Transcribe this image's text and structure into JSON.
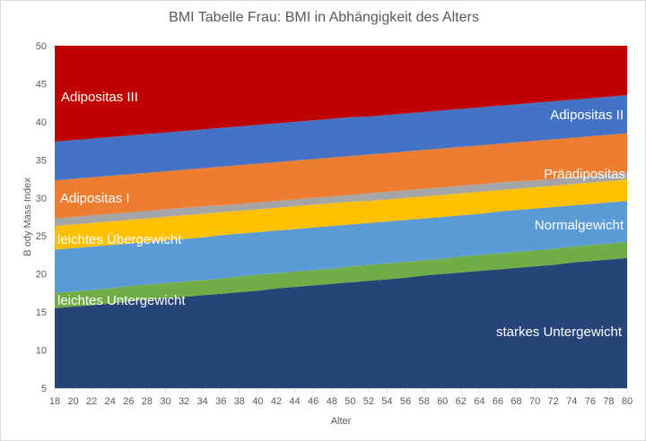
{
  "chart_data": {
    "type": "area",
    "stacked": true,
    "title": "BMI Tabelle Frau: BMI in Abhängigkeit des Alters",
    "xlabel": "Alter",
    "ylabel": "B ody Mass Index",
    "ylim": [
      5,
      50
    ],
    "yticks": [
      5,
      10,
      15,
      20,
      25,
      30,
      35,
      40,
      45,
      50
    ],
    "x": [
      18,
      20,
      22,
      24,
      26,
      28,
      30,
      32,
      34,
      36,
      38,
      40,
      42,
      44,
      46,
      48,
      50,
      52,
      54,
      56,
      58,
      60,
      62,
      64,
      66,
      68,
      70,
      72,
      74,
      76,
      78,
      80
    ],
    "grid": false,
    "series_note": "values are the upper BMI boundary of each band",
    "series": [
      {
        "name": "starkes Untergewicht",
        "color": "#264478",
        "values": [
          15.5,
          15.7,
          15.9,
          16.1,
          16.4,
          16.6,
          16.8,
          17.0,
          17.2,
          17.4,
          17.6,
          17.8,
          18.1,
          18.3,
          18.5,
          18.7,
          18.9,
          19.1,
          19.3,
          19.5,
          19.8,
          20.0,
          20.2,
          20.4,
          20.6,
          20.8,
          21.0,
          21.2,
          21.5,
          21.7,
          21.9,
          22.1
        ]
      },
      {
        "name": "leichtes Untergewicht",
        "color": "#70AD47",
        "values": [
          17.5,
          17.7,
          17.9,
          18.1,
          18.4,
          18.6,
          18.8,
          19.0,
          19.2,
          19.4,
          19.7,
          19.9,
          20.1,
          20.3,
          20.5,
          20.7,
          21.0,
          21.2,
          21.4,
          21.6,
          21.8,
          22.0,
          22.3,
          22.5,
          22.7,
          22.9,
          23.1,
          23.3,
          23.6,
          23.8,
          24.0,
          24.2
        ]
      },
      {
        "name": "Normalgewicht",
        "color": "#5B9BD5",
        "values": [
          23.2,
          23.4,
          23.6,
          23.8,
          24.0,
          24.2,
          24.4,
          24.6,
          24.8,
          25.1,
          25.3,
          25.5,
          25.7,
          25.9,
          26.1,
          26.3,
          26.5,
          26.7,
          26.9,
          27.1,
          27.3,
          27.5,
          27.7,
          27.9,
          28.2,
          28.4,
          28.6,
          28.8,
          29.0,
          29.2,
          29.4,
          29.6
        ]
      },
      {
        "name": "leichtes Übergewicht",
        "color": "#FFC000",
        "values": [
          26.3,
          26.5,
          26.7,
          26.9,
          27.1,
          27.3,
          27.5,
          27.7,
          27.9,
          28.1,
          28.3,
          28.5,
          28.7,
          28.9,
          29.1,
          29.3,
          29.5,
          29.6,
          29.8,
          30.0,
          30.2,
          30.4,
          30.6,
          30.8,
          31.0,
          31.2,
          31.4,
          31.6,
          31.8,
          32.0,
          32.2,
          32.4
        ]
      },
      {
        "name": "Präadipositas",
        "color": "#A5A5A5",
        "values": [
          27.3,
          27.5,
          27.7,
          27.9,
          28.1,
          28.3,
          28.5,
          28.7,
          28.9,
          29.0,
          29.2,
          29.4,
          29.6,
          29.8,
          30.0,
          30.2,
          30.4,
          30.6,
          30.8,
          31.0,
          31.2,
          31.4,
          31.6,
          31.8,
          32.0,
          32.2,
          32.3,
          32.5,
          32.7,
          32.9,
          33.1,
          33.3
        ]
      },
      {
        "name": "Adipositas I",
        "color": "#ED7D31",
        "values": [
          32.3,
          32.5,
          32.7,
          32.9,
          33.1,
          33.3,
          33.5,
          33.7,
          33.9,
          34.1,
          34.3,
          34.5,
          34.7,
          34.9,
          35.1,
          35.3,
          35.5,
          35.7,
          35.9,
          36.1,
          36.3,
          36.5,
          36.7,
          36.9,
          37.1,
          37.3,
          37.5,
          37.7,
          37.9,
          38.1,
          38.3,
          38.5
        ]
      },
      {
        "name": "Adipositas II",
        "color": "#4472C4",
        "values": [
          37.4,
          37.6,
          37.8,
          38.0,
          38.2,
          38.4,
          38.6,
          38.8,
          39.0,
          39.2,
          39.4,
          39.6,
          39.8,
          40.0,
          40.2,
          40.4,
          40.6,
          40.7,
          40.9,
          41.1,
          41.3,
          41.5,
          41.7,
          41.9,
          42.1,
          42.3,
          42.5,
          42.7,
          42.9,
          43.1,
          43.3,
          43.5
        ]
      },
      {
        "name": "Adipositas III",
        "color": "#C00000",
        "values": [
          50,
          50,
          50,
          50,
          50,
          50,
          50,
          50,
          50,
          50,
          50,
          50,
          50,
          50,
          50,
          50,
          50,
          50,
          50,
          50,
          50,
          50,
          50,
          50,
          50,
          50,
          50,
          50,
          50,
          50,
          50,
          50
        ]
      }
    ]
  }
}
